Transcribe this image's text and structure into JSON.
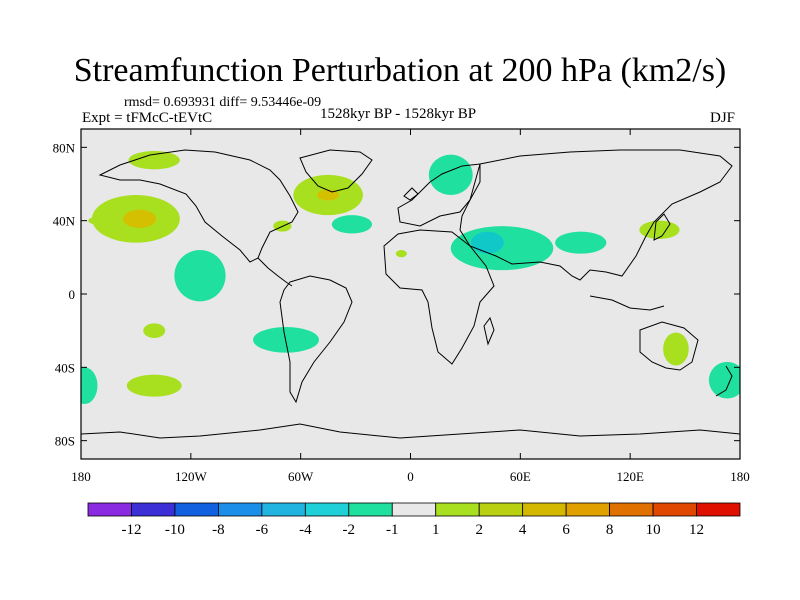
{
  "chart_data": {
    "type": "heatmap",
    "title": "Streamfunction Perturbation at 200 hPa (km2/s)",
    "stats_text": "rmsd= 0.693931  diff= 9.53446e-09",
    "left_label": "Expt = tFMcC-tEVtC",
    "center_label": "1528kyr BP - 1528kyr BP",
    "right_label": "DJF",
    "xlim": [
      -180,
      180
    ],
    "ylim": [
      -90,
      90
    ],
    "x_ticks": [
      {
        "value": -180,
        "label": "180"
      },
      {
        "value": -120,
        "label": "120W"
      },
      {
        "value": -60,
        "label": "60W"
      },
      {
        "value": 0,
        "label": "0"
      },
      {
        "value": 60,
        "label": "60E"
      },
      {
        "value": 120,
        "label": "120E"
      },
      {
        "value": 180,
        "label": "180"
      }
    ],
    "y_ticks": [
      {
        "value": 80,
        "label": "80N"
      },
      {
        "value": 40,
        "label": "40N"
      },
      {
        "value": 0,
        "label": "0"
      },
      {
        "value": -40,
        "label": "40S"
      },
      {
        "value": -80,
        "label": "80S"
      }
    ],
    "colorbar": {
      "colors": [
        "#8a2be2",
        "#3c2fd6",
        "#1060e0",
        "#1a8ee8",
        "#22b4e0",
        "#20d0d8",
        "#20e0a0",
        "#e8e8e8",
        "#a8e020",
        "#b8d010",
        "#d4b800",
        "#e0a000",
        "#e07000",
        "#e04800",
        "#e01000"
      ],
      "labels": [
        "-12",
        "-10",
        "-8",
        "-6",
        "-4",
        "-2",
        "-1",
        "1",
        "2",
        "4",
        "6",
        "8",
        "10",
        "12"
      ]
    },
    "anomalies": [
      {
        "lon": -150,
        "lat": 41,
        "rlon": 24,
        "rlat": 13,
        "level": 2
      },
      {
        "lon": -148,
        "lat": 41,
        "rlon": 9,
        "rlat": 5,
        "level": 4
      },
      {
        "lon": -115,
        "lat": 10,
        "rlon": 14,
        "rlat": 14,
        "level": -1
      },
      {
        "lon": -140,
        "lat": 73,
        "rlon": 14,
        "rlat": 5,
        "level": 2
      },
      {
        "lon": -172,
        "lat": 40,
        "rlon": 4,
        "rlat": 2,
        "level": 2
      },
      {
        "lon": -45,
        "lat": 54,
        "rlon": 19,
        "rlat": 11,
        "level": 2
      },
      {
        "lon": -45,
        "lat": 54,
        "rlon": 6,
        "rlat": 3,
        "level": 4
      },
      {
        "lon": -32,
        "lat": 38,
        "rlon": 11,
        "rlat": 5,
        "level": -1
      },
      {
        "lon": -70,
        "lat": 37,
        "rlon": 5,
        "rlat": 3,
        "level": 2
      },
      {
        "lon": 22,
        "lat": 65,
        "rlon": 12,
        "rlat": 11,
        "level": -1
      },
      {
        "lon": 50,
        "lat": 25,
        "rlon": 28,
        "rlat": 12,
        "level": -1
      },
      {
        "lon": 42,
        "lat": 28,
        "rlon": 9,
        "rlat": 6,
        "level": -2
      },
      {
        "lon": 93,
        "lat": 28,
        "rlon": 14,
        "rlat": 6,
        "level": -1
      },
      {
        "lon": 136,
        "lat": 35,
        "rlon": 11,
        "rlat": 5,
        "level": 2
      },
      {
        "lon": -5,
        "lat": 22,
        "rlon": 3,
        "rlat": 2,
        "level": 2
      },
      {
        "lon": -68,
        "lat": -25,
        "rlon": 18,
        "rlat": 7,
        "level": -1
      },
      {
        "lon": -140,
        "lat": -20,
        "rlon": 6,
        "rlat": 4,
        "level": 2
      },
      {
        "lon": -140,
        "lat": -50,
        "rlon": 15,
        "rlat": 6,
        "level": 2
      },
      {
        "lon": -178,
        "lat": -50,
        "rlon": 7,
        "rlat": 10,
        "level": -1
      },
      {
        "lon": 145,
        "lat": -30,
        "rlon": 7,
        "rlat": 9,
        "level": 2
      },
      {
        "lon": 173,
        "lat": -47,
        "rlon": 10,
        "rlat": 10,
        "level": -1
      }
    ]
  }
}
